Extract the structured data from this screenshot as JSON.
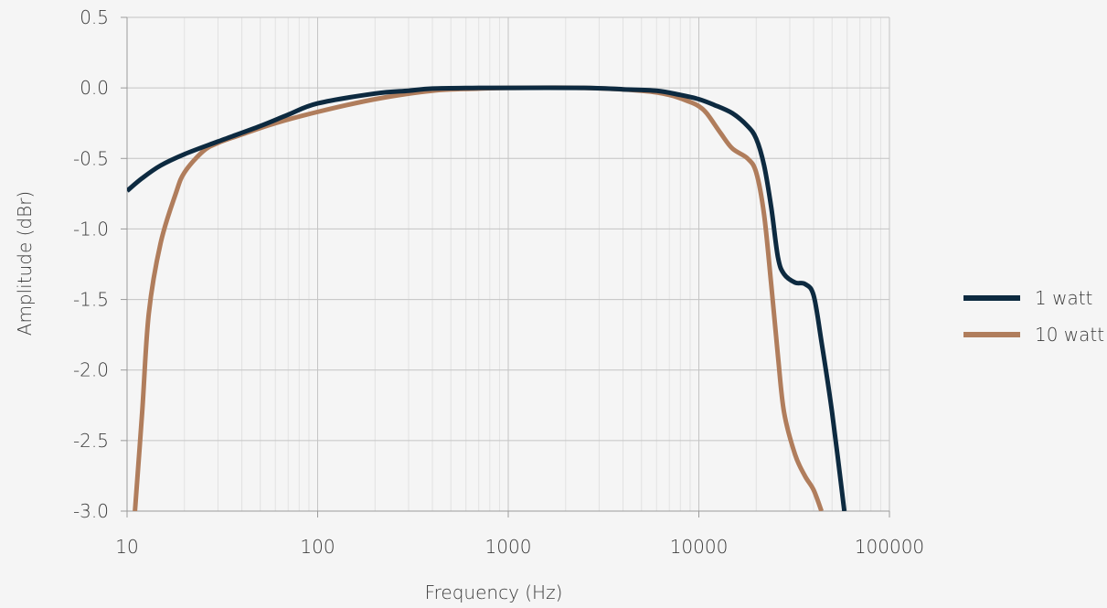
{
  "chart_data": {
    "type": "line",
    "title": "",
    "xlabel": "Frequency (Hz)",
    "ylabel": "Amplitude (dBr)",
    "x_scale": "log",
    "xlim": [
      10,
      100000
    ],
    "ylim": [
      -3.0,
      0.5
    ],
    "x_ticks": [
      "10",
      "100",
      "1000",
      "10000",
      "100000"
    ],
    "y_ticks": [
      "0.5",
      "0.0",
      "-0.5",
      "-1.0",
      "-1.5",
      "-2.0",
      "-2.5",
      "-3.0"
    ],
    "grid": true,
    "legend_position": "right",
    "series": [
      {
        "name": "1 watt",
        "color": "#0d2a40",
        "points": [
          [
            10,
            -0.73
          ],
          [
            12,
            -0.64
          ],
          [
            15,
            -0.55
          ],
          [
            20,
            -0.47
          ],
          [
            30,
            -0.38
          ],
          [
            50,
            -0.27
          ],
          [
            70,
            -0.19
          ],
          [
            100,
            -0.11
          ],
          [
            200,
            -0.04
          ],
          [
            300,
            -0.02
          ],
          [
            400,
            -0.005
          ],
          [
            700,
            0.0
          ],
          [
            1000,
            0.0
          ],
          [
            2500,
            0.0
          ],
          [
            4000,
            -0.01
          ],
          [
            6000,
            -0.02
          ],
          [
            8000,
            -0.05
          ],
          [
            10000,
            -0.08
          ],
          [
            12000,
            -0.12
          ],
          [
            15000,
            -0.18
          ],
          [
            18000,
            -0.27
          ],
          [
            20000,
            -0.36
          ],
          [
            22000,
            -0.55
          ],
          [
            24000,
            -0.85
          ],
          [
            26000,
            -1.2
          ],
          [
            28000,
            -1.32
          ],
          [
            32000,
            -1.38
          ],
          [
            36000,
            -1.39
          ],
          [
            40000,
            -1.47
          ],
          [
            44000,
            -1.8
          ],
          [
            50000,
            -2.3
          ],
          [
            58000,
            -3.0
          ]
        ]
      },
      {
        "name": "10 watt",
        "color": "#b07d5c",
        "points": [
          [
            11,
            -3.0
          ],
          [
            12,
            -2.3
          ],
          [
            13,
            -1.6
          ],
          [
            15,
            -1.1
          ],
          [
            18,
            -0.75
          ],
          [
            20,
            -0.6
          ],
          [
            25,
            -0.45
          ],
          [
            30,
            -0.39
          ],
          [
            40,
            -0.33
          ],
          [
            60,
            -0.25
          ],
          [
            100,
            -0.17
          ],
          [
            200,
            -0.08
          ],
          [
            400,
            -0.02
          ],
          [
            700,
            -0.005
          ],
          [
            1000,
            0.0
          ],
          [
            2500,
            0.0
          ],
          [
            5000,
            -0.02
          ],
          [
            7000,
            -0.05
          ],
          [
            9000,
            -0.1
          ],
          [
            10000,
            -0.13
          ],
          [
            11000,
            -0.18
          ],
          [
            13000,
            -0.32
          ],
          [
            15000,
            -0.43
          ],
          [
            18000,
            -0.5
          ],
          [
            20000,
            -0.6
          ],
          [
            22000,
            -0.9
          ],
          [
            24000,
            -1.4
          ],
          [
            26000,
            -1.9
          ],
          [
            28000,
            -2.3
          ],
          [
            32000,
            -2.6
          ],
          [
            36000,
            -2.75
          ],
          [
            40000,
            -2.85
          ],
          [
            44000,
            -3.0
          ]
        ]
      }
    ]
  }
}
